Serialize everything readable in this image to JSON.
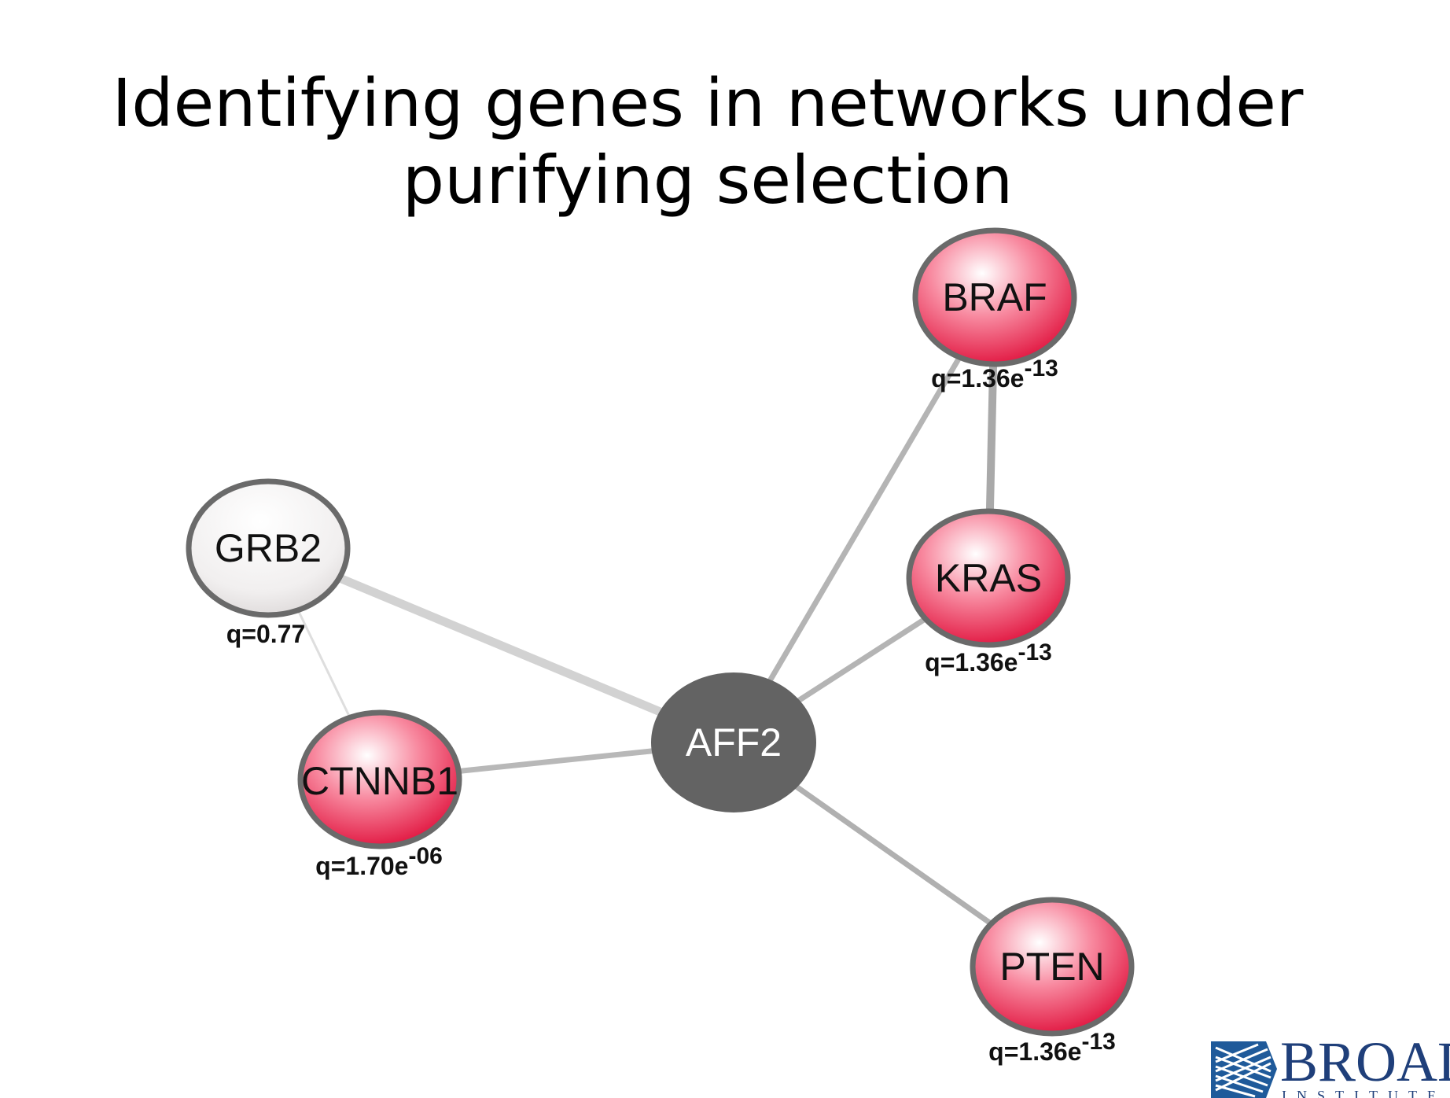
{
  "title": {
    "line1": "Identifying genes in networks under",
    "line2": "purifying selection"
  },
  "colors": {
    "significant_node": "#e8234a",
    "nonsignificant_node": "#f0eeee",
    "hub_node": "#636363",
    "node_border": "#6a6a6a",
    "edge": "#b0b0b0",
    "logo_blue": "#1f3f7a"
  },
  "network": {
    "nodes": [
      {
        "id": "braf",
        "label": "BRAF",
        "type": "significant",
        "q_prefix": "q=1.36e",
        "q_exp": "-13"
      },
      {
        "id": "kras",
        "label": "KRAS",
        "type": "significant",
        "q_prefix": "q=1.36e",
        "q_exp": "-13"
      },
      {
        "id": "grb2",
        "label": "GRB2",
        "type": "nonsignificant",
        "q_prefix": "q=0.77",
        "q_exp": ""
      },
      {
        "id": "ctnnb1",
        "label": "CTNNB1",
        "type": "significant",
        "q_prefix": "q=1.70e",
        "q_exp": "-06"
      },
      {
        "id": "aff2",
        "label": "AFF2",
        "type": "hub",
        "q_prefix": "",
        "q_exp": ""
      },
      {
        "id": "pten",
        "label": "PTEN",
        "type": "significant",
        "q_prefix": "q=1.36e",
        "q_exp": "-13"
      }
    ],
    "edges": [
      {
        "source": "braf",
        "target": "kras"
      },
      {
        "source": "braf",
        "target": "aff2"
      },
      {
        "source": "kras",
        "target": "aff2"
      },
      {
        "source": "grb2",
        "target": "aff2"
      },
      {
        "source": "grb2",
        "target": "ctnnb1"
      },
      {
        "source": "ctnnb1",
        "target": "aff2"
      },
      {
        "source": "aff2",
        "target": "pten"
      }
    ]
  },
  "logo": {
    "name": "BROAD",
    "subtitle": "INSTITUTE",
    "icon": "broad-logo-mark-icon"
  }
}
